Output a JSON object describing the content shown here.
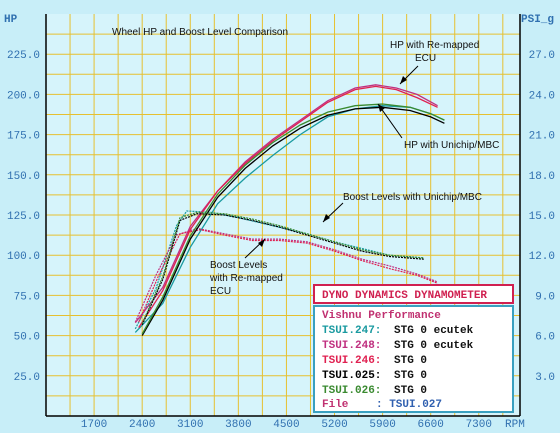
{
  "chart_data": {
    "type": "line",
    "title": "Wheel HP and Boost Level Comparison",
    "xlabel": "RPM",
    "left_axis": {
      "label": "HP",
      "ylim": [
        0,
        250
      ],
      "ticks": [
        25,
        50,
        75,
        100,
        125,
        150,
        175,
        200,
        225
      ],
      "tick_labels": [
        "25.0",
        "50.0",
        "75.0",
        "100.0",
        "125.0",
        "150.0",
        "175.0",
        "200.0",
        "225.0"
      ]
    },
    "right_axis": {
      "label": "PSI_g",
      "ylim": [
        0,
        30
      ],
      "ticks": [
        3,
        6,
        9,
        12,
        15,
        18,
        21,
        24,
        27
      ],
      "tick_labels": [
        "3.0",
        "6.0",
        "9.0",
        "12.0",
        "15.0",
        "18.0",
        "21.0",
        "24.0",
        "27.0"
      ]
    },
    "x_ticks": [
      1700,
      2400,
      3100,
      3800,
      4500,
      5200,
      5900,
      6600,
      7300
    ],
    "xlim": [
      1000,
      7900
    ],
    "grid": true,
    "colors": {
      "background": "#c8eef8",
      "grid": "#e6c030",
      "axis": "#000000",
      "box_border": "#d02050",
      "title_box_text": "#d02050",
      "info_box_border": "#3aa0c0"
    },
    "series": [
      {
        "name": "TSUI.247",
        "color": "#1a9aa0",
        "hp": [
          [
            2300,
            52
          ],
          [
            2700,
            70
          ],
          [
            3100,
            105
          ],
          [
            3500,
            132
          ],
          [
            3900,
            148
          ],
          [
            4300,
            162
          ],
          [
            4700,
            175
          ],
          [
            5100,
            186
          ],
          [
            5500,
            191
          ],
          [
            5900,
            193
          ],
          [
            6300,
            192
          ],
          [
            6600,
            188
          ],
          [
            6800,
            184
          ]
        ],
        "psi": [
          [
            2300,
            6.5
          ],
          [
            2600,
            9.5
          ],
          [
            2900,
            14.2
          ],
          [
            3050,
            15.3
          ],
          [
            3400,
            15.2
          ],
          [
            3800,
            14.8
          ],
          [
            4300,
            14.2
          ],
          [
            4800,
            13.6
          ],
          [
            5200,
            13.0
          ],
          [
            5600,
            12.5
          ],
          [
            6000,
            12.0
          ],
          [
            6500,
            11.8
          ]
        ]
      },
      {
        "name": "TSUI.248",
        "color": "#c03080",
        "hp": [
          [
            2300,
            58
          ],
          [
            2700,
            80
          ],
          [
            3100,
            118
          ],
          [
            3500,
            140
          ],
          [
            3900,
            158
          ],
          [
            4300,
            172
          ],
          [
            4700,
            184
          ],
          [
            5100,
            196
          ],
          [
            5500,
            204
          ],
          [
            5800,
            206
          ],
          [
            6100,
            204
          ],
          [
            6400,
            200
          ],
          [
            6700,
            193
          ]
        ],
        "psi": [
          [
            2300,
            7.0
          ],
          [
            2600,
            10.5
          ],
          [
            2900,
            13.5
          ],
          [
            3200,
            14.0
          ],
          [
            3600,
            13.6
          ],
          [
            4000,
            13.2
          ],
          [
            4400,
            13.2
          ],
          [
            4800,
            13.0
          ],
          [
            5200,
            12.4
          ],
          [
            5600,
            11.7
          ],
          [
            6000,
            11.2
          ],
          [
            6400,
            10.6
          ],
          [
            6700,
            10.0
          ]
        ]
      },
      {
        "name": "TSUI.246",
        "color": "#e02050",
        "hp": [
          [
            2350,
            55
          ],
          [
            2700,
            78
          ],
          [
            3100,
            116
          ],
          [
            3500,
            140
          ],
          [
            3900,
            157
          ],
          [
            4300,
            171
          ],
          [
            4700,
            183
          ],
          [
            5100,
            195
          ],
          [
            5500,
            203
          ],
          [
            5800,
            205
          ],
          [
            6100,
            203
          ],
          [
            6400,
            198
          ],
          [
            6700,
            192
          ]
        ],
        "psi": [
          [
            2350,
            7.0
          ],
          [
            2650,
            10.6
          ],
          [
            2950,
            13.6
          ],
          [
            3250,
            13.9
          ],
          [
            3600,
            13.5
          ],
          [
            4000,
            13.1
          ],
          [
            4400,
            13.1
          ],
          [
            4800,
            12.9
          ],
          [
            5200,
            12.3
          ],
          [
            5600,
            11.6
          ],
          [
            6000,
            11.0
          ],
          [
            6400,
            10.5
          ],
          [
            6700,
            9.9
          ]
        ]
      },
      {
        "name": "TSUI.025",
        "color": "#000000",
        "hp": [
          [
            2400,
            50
          ],
          [
            2700,
            72
          ],
          [
            3100,
            110
          ],
          [
            3500,
            136
          ],
          [
            3900,
            154
          ],
          [
            4300,
            168
          ],
          [
            4700,
            179
          ],
          [
            5100,
            187
          ],
          [
            5500,
            191
          ],
          [
            5900,
            192
          ],
          [
            6300,
            190
          ],
          [
            6600,
            186
          ],
          [
            6800,
            182
          ]
        ],
        "psi": [
          [
            2400,
            6.8
          ],
          [
            2700,
            10.2
          ],
          [
            2950,
            14.6
          ],
          [
            3200,
            15.1
          ],
          [
            3600,
            15.0
          ],
          [
            4000,
            14.6
          ],
          [
            4400,
            14.1
          ],
          [
            4800,
            13.5
          ],
          [
            5200,
            12.9
          ],
          [
            5600,
            12.3
          ],
          [
            6000,
            11.9
          ],
          [
            6500,
            11.7
          ]
        ]
      },
      {
        "name": "TSUI.026",
        "color": "#3a8a30",
        "hp": [
          [
            2400,
            51
          ],
          [
            2700,
            74
          ],
          [
            3100,
            112
          ],
          [
            3500,
            138
          ],
          [
            3900,
            156
          ],
          [
            4300,
            170
          ],
          [
            4700,
            181
          ],
          [
            5100,
            189
          ],
          [
            5500,
            193
          ],
          [
            5900,
            194
          ],
          [
            6300,
            192
          ],
          [
            6600,
            188
          ],
          [
            6800,
            184
          ]
        ],
        "psi": [
          [
            2400,
            6.9
          ],
          [
            2700,
            10.4
          ],
          [
            2950,
            14.8
          ],
          [
            3200,
            15.2
          ],
          [
            3600,
            15.1
          ],
          [
            4000,
            14.7
          ],
          [
            4400,
            14.2
          ],
          [
            4800,
            13.6
          ],
          [
            5200,
            13.0
          ],
          [
            5600,
            12.4
          ],
          [
            6000,
            12.0
          ],
          [
            6500,
            11.8
          ]
        ]
      }
    ],
    "annotations": [
      {
        "text": [
          "HP with Re-mapped",
          "ECU"
        ]
      },
      {
        "text": [
          "HP with Unichip/MBC"
        ]
      },
      {
        "text": [
          "Boost Levels with Unichip/MBC"
        ]
      },
      {
        "text": [
          "Boost Levels",
          "with Re-mapped",
          "ECU"
        ]
      }
    ]
  },
  "title_box": {
    "text": "DYNO DYNAMICS DYNAMOMETER"
  },
  "info_box": {
    "company": "Vishnu Performance",
    "runs": [
      {
        "id": "TSUI.247:",
        "desc": "STG 0 ecutek",
        "color": "#1a9aa0"
      },
      {
        "id": "TSUI.248:",
        "desc": "STG 0 ecutek",
        "color": "#c03080"
      },
      {
        "id": "TSUI.246:",
        "desc": "STG 0",
        "color": "#e02050"
      },
      {
        "id": "TSUI.025:",
        "desc": "STG 0",
        "color": "#000000"
      },
      {
        "id": "TSUI.026:",
        "desc": "STG 0",
        "color": "#3a8a30"
      }
    ],
    "file_label": "File",
    "file_value": ": TSUI.027"
  }
}
